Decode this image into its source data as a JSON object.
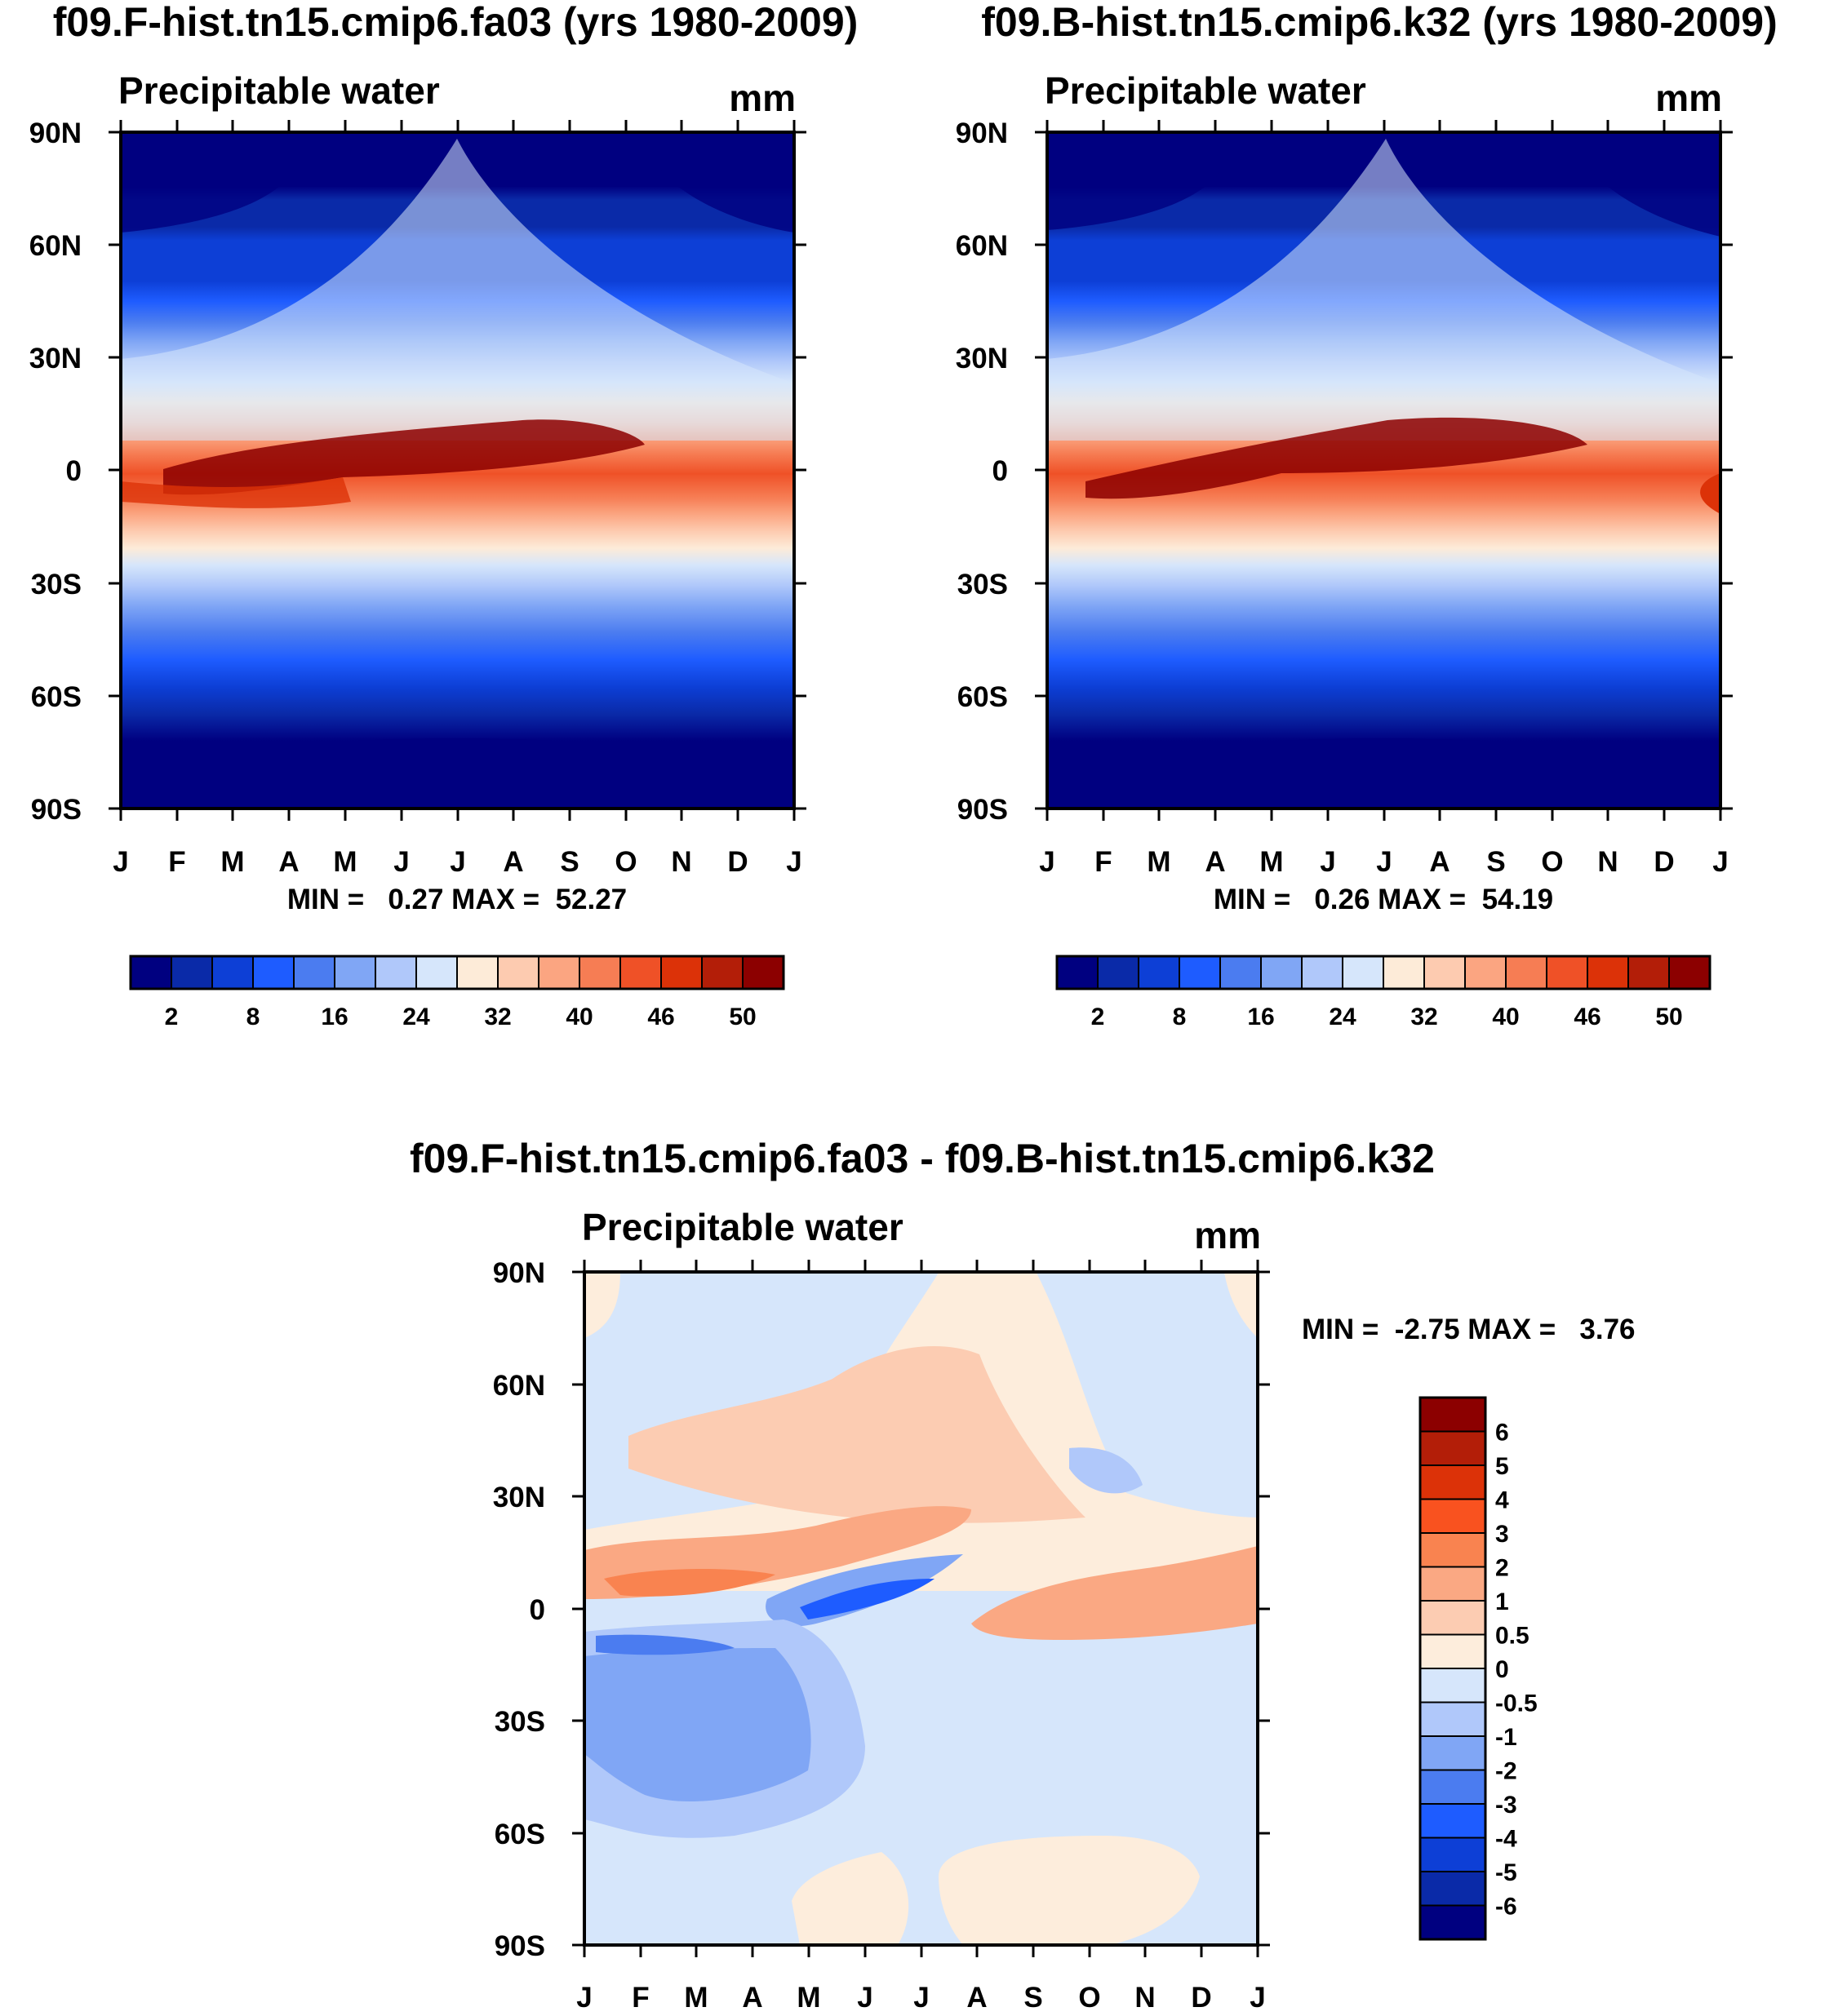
{
  "chart_data": [
    {
      "id": "panel1",
      "type": "contour",
      "title": "f09.F-hist.tn15.cmip6.fa03 (yrs 1980-2009)",
      "subtitle": "Precipitable water",
      "units": "mm",
      "x_ticks": [
        "J",
        "F",
        "M",
        "A",
        "M",
        "J",
        "J",
        "A",
        "S",
        "O",
        "N",
        "D",
        "J"
      ],
      "y_ticks": [
        "90N",
        "60N",
        "30N",
        "0",
        "30S",
        "60S",
        "90S"
      ],
      "stats_text": "MIN =   0.27 MAX =  52.27",
      "colorbar": {
        "labels": [
          "2",
          "8",
          "16",
          "24",
          "32",
          "40",
          "46",
          "50"
        ],
        "colors": [
          "#000080",
          "#0a2aa8",
          "#0d3fd6",
          "#1e5cff",
          "#4b7cf0",
          "#80a6f5",
          "#b0c8fa",
          "#d6e6fb",
          "#fdebd8",
          "#fdcbb0",
          "#fba581",
          "#f67d54",
          "#ef5127",
          "#dc3208",
          "#b31e08",
          "#8c0000"
        ]
      }
    },
    {
      "id": "panel2",
      "type": "contour",
      "title": "f09.B-hist.tn15.cmip6.k32 (yrs 1980-2009)",
      "subtitle": "Precipitable water",
      "units": "mm",
      "x_ticks": [
        "J",
        "F",
        "M",
        "A",
        "M",
        "J",
        "J",
        "A",
        "S",
        "O",
        "N",
        "D",
        "J"
      ],
      "y_ticks": [
        "90N",
        "60N",
        "30N",
        "0",
        "30S",
        "60S",
        "90S"
      ],
      "stats_text": "MIN =   0.26 MAX =  54.19",
      "colorbar": {
        "labels": [
          "2",
          "8",
          "16",
          "24",
          "32",
          "40",
          "46",
          "50"
        ],
        "colors": [
          "#000080",
          "#0a2aa8",
          "#0d3fd6",
          "#1e5cff",
          "#4b7cf0",
          "#80a6f5",
          "#b0c8fa",
          "#d6e6fb",
          "#fdebd8",
          "#fdcbb0",
          "#fba581",
          "#f67d54",
          "#ef5127",
          "#dc3208",
          "#b31e08",
          "#8c0000"
        ]
      }
    },
    {
      "id": "panel3",
      "type": "contour",
      "title": "f09.F-hist.tn15.cmip6.fa03 - f09.B-hist.tn15.cmip6.k32",
      "subtitle": "Precipitable water",
      "units": "mm",
      "x_ticks": [
        "J",
        "F",
        "M",
        "A",
        "M",
        "J",
        "J",
        "A",
        "S",
        "O",
        "N",
        "D",
        "J"
      ],
      "y_ticks": [
        "90N",
        "60N",
        "30N",
        "0",
        "30S",
        "60S",
        "90S"
      ],
      "stats_text": "MIN =  -2.75 MAX =   3.76",
      "colorbar": {
        "labels": [
          "6",
          "5",
          "4",
          "3",
          "2",
          "1",
          "0.5",
          "0",
          "-0.5",
          "-1",
          "-2",
          "-3",
          "-4",
          "-5",
          "-6"
        ],
        "colors": [
          "#8c0000",
          "#b31e08",
          "#dc3208",
          "#f9521f",
          "#f98350",
          "#faa883",
          "#fcccb2",
          "#fdeddc",
          "#d6e6fb",
          "#b0c8fa",
          "#80a6f5",
          "#4b7cf0",
          "#1e5cff",
          "#0d3fd6",
          "#0a2aa8",
          "#000080"
        ]
      }
    }
  ]
}
